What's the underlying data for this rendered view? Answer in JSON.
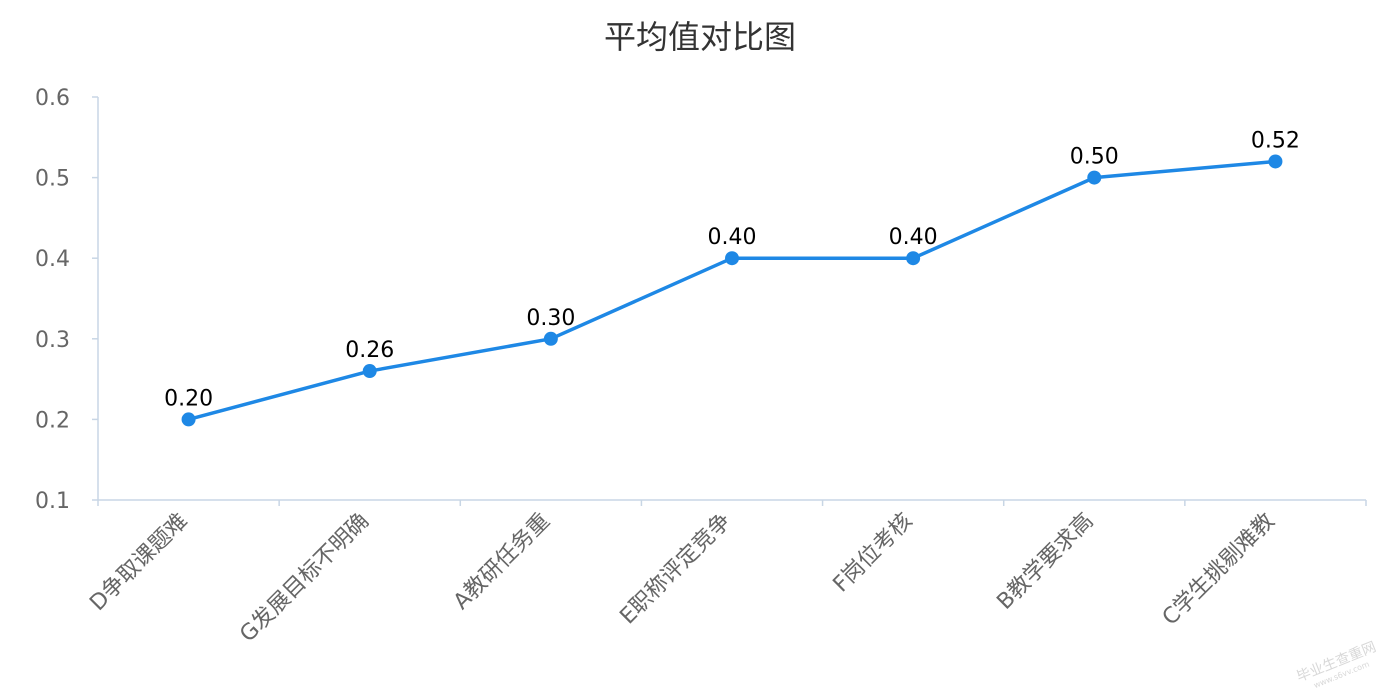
{
  "chart_data": {
    "type": "line",
    "title": "平均值对比图",
    "categories": [
      "D争取课题难",
      "G发展目标不明确",
      "A教研任务重",
      "E职称评定竞争",
      "F岗位考核",
      "B教学要求高",
      "C学生挑剔难教"
    ],
    "series": [
      {
        "values": [
          0.2,
          0.26,
          0.3,
          0.4,
          0.4,
          0.5,
          0.52
        ],
        "labels": [
          "0.20",
          "0.26",
          "0.30",
          "0.40",
          "0.40",
          "0.50",
          "0.52"
        ]
      }
    ],
    "yticks": [
      "0.1",
      "0.2",
      "0.3",
      "0.4",
      "0.5",
      "0.6"
    ],
    "ylim": [
      0.1,
      0.6
    ],
    "xlabel": "",
    "ylabel": "",
    "grid": false,
    "colors": {
      "line": "#1e88e5",
      "axis": "#c8d6e5"
    }
  },
  "watermark": {
    "line1": "毕业生查重网",
    "line2": "www.s6vv.com"
  }
}
